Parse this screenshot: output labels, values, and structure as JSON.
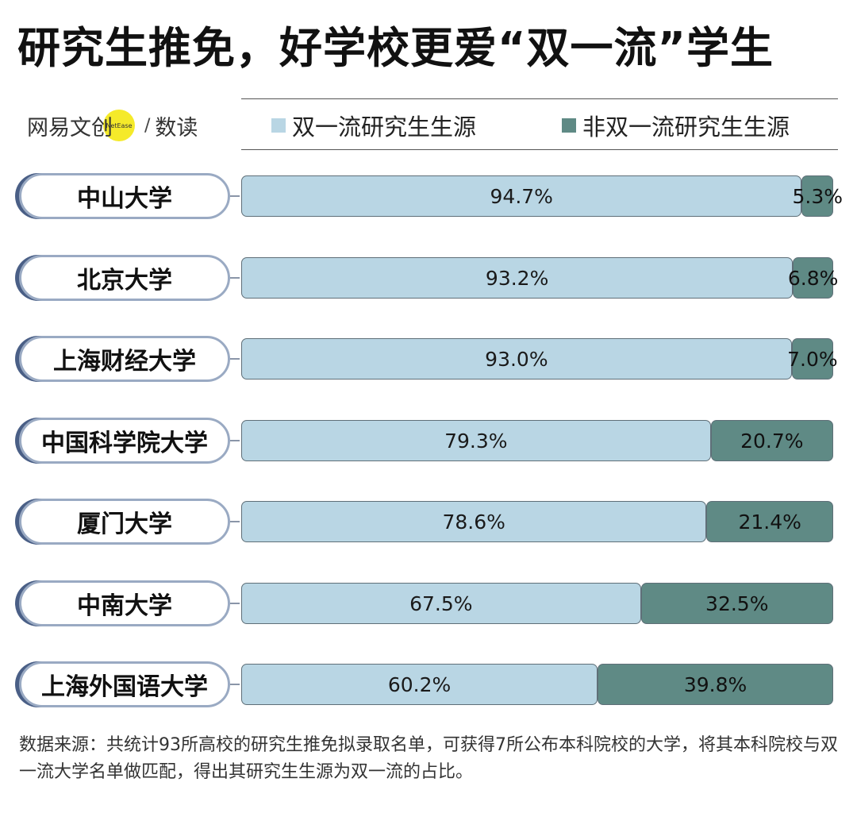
{
  "title": "研究生推免，好学校更爱“双一流”学生",
  "brand": {
    "name": "网易文创",
    "badge": "NetEase",
    "separator": "/",
    "sub": "数读"
  },
  "source": "数据来源：共统计93所高校的研究生推免拟录取名单，可获得7所公布本科院校的大学，将其本科院校与双一流大学名单做匹配，得出其研究生生源为双一流的占比。",
  "colors": {
    "double_first_class": "#b9d6e4",
    "non_double_first_class": "#5f8a85",
    "pill_border": "#9aaac3",
    "pill_shadow": "#4a5f86"
  },
  "chart_data": {
    "type": "bar",
    "orientation": "horizontal",
    "stacked": true,
    "percent_scale": true,
    "title": "研究生推免，好学校更爱“双一流”学生",
    "xlabel": "",
    "ylabel": "",
    "xlim": [
      0,
      100
    ],
    "grid": false,
    "legend_position": "top",
    "categories": [
      "中山大学",
      "北京大学",
      "上海财经大学",
      "中国科学院大学",
      "厦门大学",
      "中南大学",
      "上海外国语大学"
    ],
    "series": [
      {
        "name": "双一流研究生生源",
        "color": "#b9d6e4",
        "values": [
          94.7,
          93.2,
          93.0,
          79.3,
          78.6,
          67.5,
          60.2
        ],
        "labels": [
          "94.7%",
          "93.2%",
          "93.0%",
          "79.3%",
          "78.6%",
          "67.5%",
          "60.2%"
        ]
      },
      {
        "name": "非双一流研究生生源",
        "color": "#5f8a85",
        "values": [
          5.3,
          6.8,
          7.0,
          20.7,
          21.4,
          32.5,
          39.8
        ],
        "labels": [
          "5.3%",
          "6.8%",
          "7.0%",
          "20.7%",
          "21.4%",
          "32.5%",
          "39.8%"
        ]
      }
    ]
  }
}
